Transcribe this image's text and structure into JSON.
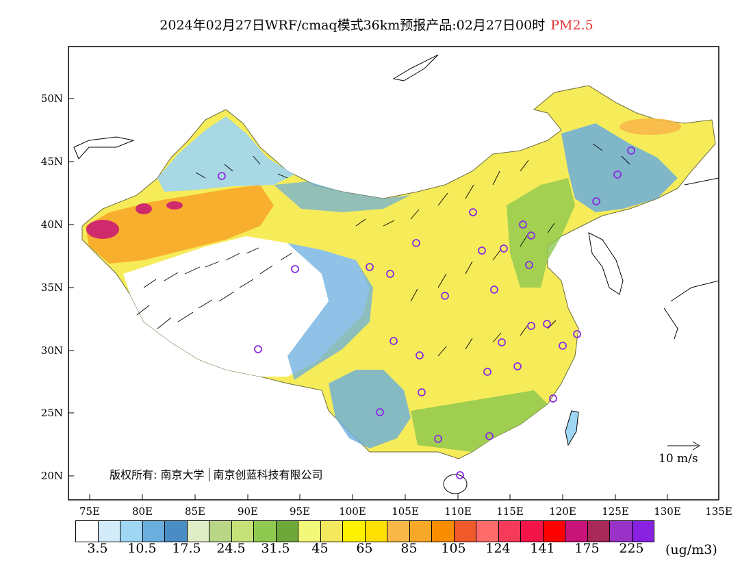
{
  "title": {
    "main": "2024年02月27日WRF/cmaq模式36km预报产品:02月27日00时",
    "species": "PM2.5"
  },
  "map": {
    "lat_ticks": [
      "50N",
      "45N",
      "40N",
      "35N",
      "30N",
      "25N",
      "20N"
    ],
    "lon_ticks": [
      "75E",
      "80E",
      "85E",
      "90E",
      "95E",
      "100E",
      "105E",
      "110E",
      "115E",
      "120E",
      "125E",
      "130E",
      "135E"
    ]
  },
  "copyright": {
    "label": "版权所有:",
    "org1": "南京大学",
    "org2": "南京创蓝科技有限公司"
  },
  "wind_scale": {
    "label": "10 m/s"
  },
  "colorbar": {
    "colors": [
      "#ffffff",
      "#d4ecfa",
      "#9fd6f3",
      "#6aaedd",
      "#4a8cc4",
      "#e0eec8",
      "#b9d686",
      "#c6e07a",
      "#8fc94f",
      "#6ea83a",
      "#f2f878",
      "#f4e85e",
      "#fff200",
      "#ffe000",
      "#f8b848",
      "#f8a828",
      "#fa8c00",
      "#f05a2a",
      "#ff6a6a",
      "#f63a5a",
      "#f5144a",
      "#ff0000",
      "#c81478",
      "#a82858",
      "#9b32c8",
      "#8822e0"
    ],
    "labels": [
      "3.5",
      "10.5",
      "17.5",
      "24.5",
      "31.5",
      "45",
      "65",
      "85",
      "105",
      "124",
      "141",
      "175",
      "225"
    ],
    "units": "(ug/m3)"
  }
}
